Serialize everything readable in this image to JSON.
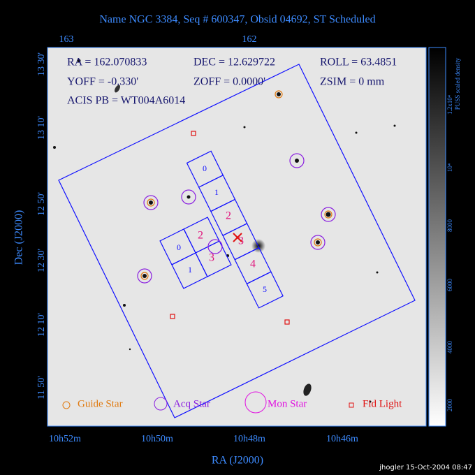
{
  "header": {
    "title": "Name NGC 3384, Seq # 600347, Obsid 04692, ST Scheduled"
  },
  "top_axis": {
    "ticks": [
      "163",
      "162"
    ]
  },
  "info": {
    "ra": "RA = 162.070833",
    "dec": "DEC = 12.629722",
    "roll": "ROLL = 63.4851",
    "yoff": "YOFF = -0.330'",
    "zoff": "ZOFF = 0.0000'",
    "zsim": "ZSIM = 0 mm",
    "acis_pb": "ACIS PB = WT004A6014"
  },
  "acis_s_chips": [
    "0",
    "1",
    "2",
    "3",
    "4",
    "5"
  ],
  "acis_i_chips": [
    "0",
    "1",
    "2",
    "3"
  ],
  "legend": {
    "guide": "Guide Star",
    "acq": "Acq Star",
    "mon": "Mon Star",
    "fid": "Fid Light"
  },
  "y_axis": {
    "title": "Dec (J2000)",
    "ticks": [
      "13 30'",
      "13 10'",
      "12 50'",
      "12 30'",
      "12 10'",
      "11 50'"
    ]
  },
  "x_axis": {
    "title": "RA (J2000)",
    "ticks": [
      "10h52m",
      "10h50m",
      "10h48m",
      "10h46m"
    ]
  },
  "colorbar": {
    "title": "PUSS scaled density",
    "ticks": [
      "1.2x10⁴",
      "10⁴",
      "8000",
      "6000",
      "4000",
      "2000"
    ]
  },
  "footer": {
    "stamp": "jhogler 15-Oct-2004 08:47"
  }
}
